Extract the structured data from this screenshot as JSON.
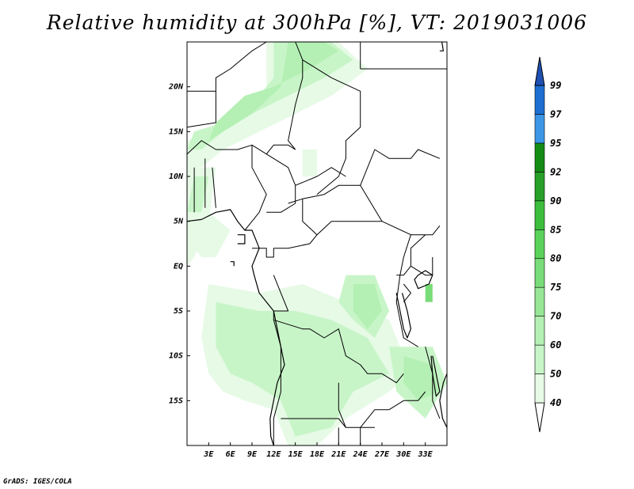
{
  "title": "Relative humidity at 300hPa [%], VT: 2019031006",
  "credit": "GrADS: IGES/COLA",
  "map": {
    "lon_range": [
      0,
      36
    ],
    "lat_range": [
      -20,
      25
    ],
    "lon_ticks": [
      {
        "value": 3,
        "label": "3E"
      },
      {
        "value": 6,
        "label": "6E"
      },
      {
        "value": 9,
        "label": "9E"
      },
      {
        "value": 12,
        "label": "12E"
      },
      {
        "value": 15,
        "label": "15E"
      },
      {
        "value": 18,
        "label": "18E"
      },
      {
        "value": 21,
        "label": "21E"
      },
      {
        "value": 24,
        "label": "24E"
      },
      {
        "value": 27,
        "label": "27E"
      },
      {
        "value": 30,
        "label": "30E"
      },
      {
        "value": 33,
        "label": "33E"
      }
    ],
    "lat_ticks": [
      {
        "value": 20,
        "label": "20N"
      },
      {
        "value": 15,
        "label": "15N"
      },
      {
        "value": 10,
        "label": "10N"
      },
      {
        "value": 5,
        "label": "5N"
      },
      {
        "value": 0,
        "label": "EQ"
      },
      {
        "value": -5,
        "label": "5S"
      },
      {
        "value": -10,
        "label": "10S"
      },
      {
        "value": -15,
        "label": "15S"
      }
    ],
    "colorbar": {
      "levels": [
        "40",
        "50",
        "60",
        "70",
        "75",
        "80",
        "85",
        "90",
        "92",
        "95",
        "97",
        "99"
      ],
      "colors": [
        "#e6fae6",
        "#c8f5c8",
        "#b4f0b4",
        "#96e696",
        "#78dc78",
        "#5ad25a",
        "#3cbe3c",
        "#28a028",
        "#148c14",
        "#3c96e6",
        "#1e6ed2",
        "#1e50b4"
      ],
      "over_color": "#1e50b4",
      "under_color": "#ffffff"
    },
    "humidity_patches": [
      {
        "level": 0,
        "pts": [
          [
            11,
            25
          ],
          [
            21,
            25
          ],
          [
            25,
            22
          ],
          [
            20,
            19
          ],
          [
            15,
            17
          ],
          [
            10,
            15
          ],
          [
            5,
            13
          ],
          [
            2,
            11
          ],
          [
            0,
            11
          ],
          [
            0,
            14
          ],
          [
            4,
            15
          ],
          [
            8,
            17
          ],
          [
            11,
            20
          ]
        ]
      },
      {
        "level": 1,
        "pts": [
          [
            12,
            25
          ],
          [
            20,
            25
          ],
          [
            23,
            23
          ],
          [
            19,
            21
          ],
          [
            14,
            19
          ],
          [
            9,
            17
          ],
          [
            5,
            15
          ],
          [
            2,
            13
          ],
          [
            0,
            13
          ],
          [
            1,
            15
          ],
          [
            5,
            16
          ],
          [
            9,
            18
          ],
          [
            12,
            21
          ]
        ]
      },
      {
        "level": 2,
        "pts": [
          [
            14,
            25
          ],
          [
            19,
            25
          ],
          [
            21,
            24
          ],
          [
            17,
            22
          ],
          [
            12,
            20
          ],
          [
            8,
            19
          ],
          [
            4,
            16
          ],
          [
            3,
            14
          ],
          [
            5,
            15
          ],
          [
            9,
            17
          ],
          [
            13,
            20
          ]
        ]
      },
      {
        "level": 0,
        "pts": [
          [
            0,
            11
          ],
          [
            4,
            11
          ],
          [
            3,
            5
          ],
          [
            1,
            1
          ],
          [
            0,
            0
          ]
        ]
      },
      {
        "level": 1,
        "pts": [
          [
            1,
            10
          ],
          [
            3,
            10
          ],
          [
            2,
            6
          ],
          [
            0,
            6
          ]
        ]
      },
      {
        "level": 0,
        "pts": [
          [
            0,
            6
          ],
          [
            3,
            6
          ],
          [
            6,
            4
          ],
          [
            4,
            1
          ],
          [
            2,
            1
          ],
          [
            0,
            3
          ]
        ]
      },
      {
        "level": 0,
        "pts": [
          [
            3,
            -2
          ],
          [
            10,
            -3
          ],
          [
            16,
            -2
          ],
          [
            22,
            -4
          ],
          [
            28,
            -6
          ],
          [
            31,
            -12
          ],
          [
            28,
            -14
          ],
          [
            22,
            -17
          ],
          [
            18,
            -20
          ],
          [
            14,
            -20
          ],
          [
            12,
            -16
          ],
          [
            8,
            -15
          ],
          [
            5,
            -14
          ],
          [
            3,
            -12
          ],
          [
            2,
            -8
          ]
        ]
      },
      {
        "level": 1,
        "pts": [
          [
            4,
            -4
          ],
          [
            10,
            -5
          ],
          [
            15,
            -5
          ],
          [
            20,
            -6
          ],
          [
            25,
            -8
          ],
          [
            28,
            -12
          ],
          [
            23,
            -14
          ],
          [
            20,
            -18
          ],
          [
            15,
            -19
          ],
          [
            13,
            -15
          ],
          [
            9,
            -13
          ],
          [
            6,
            -12
          ],
          [
            4,
            -9
          ]
        ]
      },
      {
        "level": 1,
        "pts": [
          [
            22,
            -1
          ],
          [
            26,
            -1
          ],
          [
            28,
            -5
          ],
          [
            26,
            -8
          ],
          [
            23,
            -6
          ],
          [
            21,
            -4
          ]
        ]
      },
      {
        "level": 2,
        "pts": [
          [
            23,
            -2
          ],
          [
            26,
            -2
          ],
          [
            27,
            -5
          ],
          [
            25,
            -7
          ],
          [
            23,
            -5
          ]
        ]
      },
      {
        "level": 1,
        "pts": [
          [
            28,
            -9
          ],
          [
            34,
            -9
          ],
          [
            36,
            -13
          ],
          [
            33,
            -17
          ],
          [
            29,
            -14
          ]
        ]
      },
      {
        "level": 2,
        "pts": [
          [
            30,
            -10
          ],
          [
            34,
            -11
          ],
          [
            35,
            -14
          ],
          [
            32,
            -15
          ],
          [
            30,
            -13
          ]
        ]
      },
      {
        "level": 4,
        "pts": [
          [
            33,
            -2
          ],
          [
            34,
            -2
          ],
          [
            34,
            -4
          ],
          [
            33,
            -4
          ]
        ]
      },
      {
        "level": 0,
        "pts": [
          [
            16,
            13
          ],
          [
            18,
            13
          ],
          [
            18,
            10
          ],
          [
            16,
            10
          ]
        ]
      }
    ],
    "borders": [
      [
        [
          0,
          19.5
        ],
        [
          4,
          19.5
        ],
        [
          4,
          21
        ],
        [
          6,
          22
        ],
        [
          9,
          24
        ],
        [
          11,
          25
        ]
      ],
      [
        [
          0,
          15.5
        ],
        [
          4,
          16
        ],
        [
          4,
          19.5
        ]
      ],
      [
        [
          0,
          12.5
        ],
        [
          2,
          14
        ],
        [
          4,
          13
        ],
        [
          7,
          13
        ],
        [
          9,
          13.5
        ],
        [
          11,
          12.5
        ],
        [
          12,
          13.5
        ],
        [
          14,
          13.5
        ],
        [
          15,
          13
        ]
      ],
      [
        [
          15,
          25
        ],
        [
          16,
          23
        ],
        [
          16,
          21
        ],
        [
          15,
          18
        ],
        [
          14,
          14
        ],
        [
          15,
          13
        ]
      ],
      [
        [
          16,
          23
        ],
        [
          20,
          21
        ],
        [
          24,
          19.5
        ],
        [
          24,
          15.5
        ],
        [
          22,
          14
        ],
        [
          22,
          12
        ],
        [
          21,
          10
        ],
        [
          18,
          8
        ]
      ],
      [
        [
          24,
          22
        ],
        [
          36,
          22
        ]
      ],
      [
        [
          24,
          25
        ],
        [
          24,
          22
        ]
      ],
      [
        [
          1,
          11
        ],
        [
          1,
          6
        ]
      ],
      [
        [
          2.5,
          12
        ],
        [
          2.5,
          6.5
        ]
      ],
      [
        [
          3.5,
          11
        ],
        [
          4,
          6.5
        ]
      ],
      [
        [
          9,
          13.5
        ],
        [
          9,
          11
        ],
        [
          11,
          8
        ],
        [
          10,
          6
        ],
        [
          9,
          5
        ],
        [
          8,
          4
        ]
      ],
      [
        [
          11,
          12.5
        ],
        [
          14,
          11
        ],
        [
          15,
          9
        ],
        [
          15,
          7
        ],
        [
          13,
          6
        ],
        [
          11,
          6
        ]
      ],
      [
        [
          15,
          9
        ],
        [
          18,
          10
        ],
        [
          20,
          11
        ],
        [
          22,
          10
        ]
      ],
      [
        [
          14,
          7
        ],
        [
          16,
          7.5
        ],
        [
          19,
          8
        ],
        [
          21,
          9
        ],
        [
          24,
          9
        ],
        [
          27,
          5
        ],
        [
          31,
          3.5
        ]
      ],
      [
        [
          16,
          7.5
        ],
        [
          16,
          5
        ],
        [
          18,
          3.5
        ],
        [
          20,
          5
        ],
        [
          24,
          5
        ],
        [
          27,
          5
        ]
      ],
      [
        [
          24,
          9
        ],
        [
          25,
          11
        ],
        [
          26,
          13
        ],
        [
          28,
          12
        ],
        [
          31,
          12
        ],
        [
          32,
          13
        ],
        [
          35,
          12
        ]
      ],
      [
        [
          31,
          3.5
        ],
        [
          34,
          3.5
        ],
        [
          35,
          4.5
        ]
      ],
      [
        [
          31,
          3.5
        ],
        [
          30,
          1
        ],
        [
          29.5,
          -1
        ],
        [
          29,
          -4
        ],
        [
          30,
          -8
        ],
        [
          32,
          -9
        ]
      ],
      [
        [
          9,
          2
        ],
        [
          11,
          2
        ],
        [
          11,
          1
        ],
        [
          12,
          1
        ],
        [
          12,
          2
        ],
        [
          14,
          2
        ]
      ],
      [
        [
          14,
          2
        ],
        [
          17,
          2.5
        ],
        [
          18,
          3.5
        ]
      ],
      [
        [
          12,
          -1
        ],
        [
          13,
          -3
        ],
        [
          14,
          -5
        ],
        [
          12,
          -5
        ],
        [
          12,
          -6
        ]
      ],
      [
        [
          12,
          -6
        ],
        [
          16,
          -7
        ],
        [
          17,
          -7
        ],
        [
          19,
          -8
        ],
        [
          21,
          -7
        ],
        [
          22,
          -10
        ],
        [
          24,
          -11
        ],
        [
          25,
          -12
        ],
        [
          27,
          -12
        ],
        [
          29,
          -13
        ],
        [
          30,
          -12
        ]
      ],
      [
        [
          12,
          -6
        ],
        [
          13,
          -9
        ],
        [
          13,
          -14
        ],
        [
          12,
          -17
        ],
        [
          12,
          -20
        ]
      ],
      [
        [
          13,
          -17
        ],
        [
          21,
          -17
        ],
        [
          22,
          -18
        ],
        [
          24,
          -18
        ],
        [
          26,
          -18
        ]
      ],
      [
        [
          21,
          -13
        ],
        [
          21,
          -16
        ],
        [
          22,
          -18
        ]
      ],
      [
        [
          24,
          -18
        ],
        [
          26,
          -16
        ],
        [
          28,
          -16
        ],
        [
          30,
          -15
        ],
        [
          32,
          -15
        ],
        [
          33,
          -14
        ]
      ],
      [
        [
          33,
          -9
        ],
        [
          34,
          -12
        ],
        [
          34,
          -15
        ],
        [
          35,
          -17
        ]
      ],
      [
        [
          29,
          -1
        ],
        [
          30,
          -1
        ],
        [
          31,
          0
        ],
        [
          33,
          -1
        ],
        [
          34,
          -1
        ],
        [
          34,
          1
        ]
      ],
      [
        [
          31,
          0
        ],
        [
          31,
          2
        ],
        [
          33,
          3.5
        ]
      ],
      [
        [
          30,
          -2
        ],
        [
          31,
          -3
        ],
        [
          30,
          -4
        ]
      ],
      [
        [
          21,
          -20
        ],
        [
          21,
          -18
        ]
      ],
      [
        [
          24,
          -18
        ],
        [
          24,
          -20
        ]
      ]
    ],
    "coastline": [
      [
        [
          0,
          5
        ],
        [
          2,
          5.2
        ],
        [
          4,
          6
        ],
        [
          6,
          6.3
        ],
        [
          7,
          5
        ],
        [
          8,
          4
        ],
        [
          9,
          4
        ],
        [
          9.5,
          3
        ],
        [
          10,
          2
        ],
        [
          9.5,
          1
        ],
        [
          9,
          0
        ],
        [
          9.3,
          -1
        ],
        [
          10,
          -3
        ],
        [
          11,
          -4
        ],
        [
          12,
          -5
        ],
        [
          12.5,
          -7
        ],
        [
          13,
          -9
        ],
        [
          13.5,
          -11
        ],
        [
          12.5,
          -13
        ],
        [
          12,
          -15
        ],
        [
          11.5,
          -17
        ],
        [
          11.6,
          -19
        ],
        [
          12,
          -20
        ]
      ],
      [
        [
          36,
          -12
        ],
        [
          35.5,
          -13
        ],
        [
          35,
          -15
        ],
        [
          35.4,
          -17
        ],
        [
          36,
          -18
        ]
      ],
      [
        [
          32,
          -1
        ],
        [
          33,
          -0.5
        ],
        [
          34,
          -1
        ],
        [
          33.5,
          -2
        ],
        [
          32,
          -2.5
        ],
        [
          31.5,
          -1.5
        ],
        [
          32,
          -1
        ]
      ],
      [
        [
          29,
          -3
        ],
        [
          29.5,
          -5
        ],
        [
          30,
          -7
        ],
        [
          30.5,
          -8
        ],
        [
          31,
          -7
        ],
        [
          30.5,
          -5
        ],
        [
          29.8,
          -3
        ]
      ],
      [
        [
          34,
          -10
        ],
        [
          34.5,
          -12
        ],
        [
          35,
          -14
        ],
        [
          34.5,
          -14.5
        ],
        [
          34,
          -12
        ],
        [
          33.8,
          -10
        ]
      ],
      [
        [
          35,
          24
        ],
        [
          35.5,
          24
        ],
        [
          35.3,
          25
        ]
      ],
      [
        [
          7,
          3.5
        ],
        [
          8,
          3.5
        ],
        [
          8,
          2.5
        ],
        [
          7,
          2.5
        ]
      ],
      [
        [
          6,
          0.5
        ],
        [
          6.5,
          0.5
        ],
        [
          6.5,
          0
        ]
      ]
    ]
  }
}
